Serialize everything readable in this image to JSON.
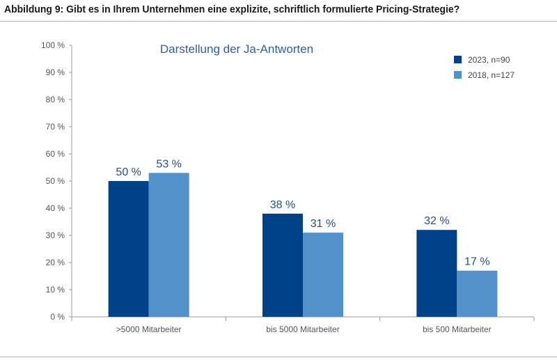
{
  "figure_title": "Abbildung 9: Gibt es in Ihrem Unternehmen eine explizite, schriftlich formulierte Pricing-Strategie?",
  "chart_data": {
    "type": "bar",
    "title": "Darstellung der Ja-Antworten",
    "categories": [
      ">5000 Mitarbeiter",
      "bis 5000 Mitarbeiter",
      "bis 500 Mitarbeiter"
    ],
    "series": [
      {
        "name": "2023, n=90",
        "values": [
          50,
          38,
          32
        ],
        "labels": [
          "50 %",
          "38 %",
          "32 %"
        ],
        "color": "#00428a"
      },
      {
        "name": "2018, n=127",
        "values": [
          53,
          31,
          17
        ],
        "labels": [
          "53 %",
          "31 %",
          "17 %"
        ],
        "color": "#5291c9"
      }
    ],
    "ylim": [
      0,
      100
    ],
    "yticks": [
      0,
      10,
      20,
      30,
      40,
      50,
      60,
      70,
      80,
      90,
      100
    ],
    "ytick_labels": [
      "0 %",
      "10 %",
      "20 %",
      "30 %",
      "40 %",
      "50 %",
      "60 %",
      "70 %",
      "80 %",
      "90 %",
      "100 %"
    ],
    "xlabel": "",
    "ylabel": "",
    "grid": false,
    "legend_position": "top-right"
  }
}
